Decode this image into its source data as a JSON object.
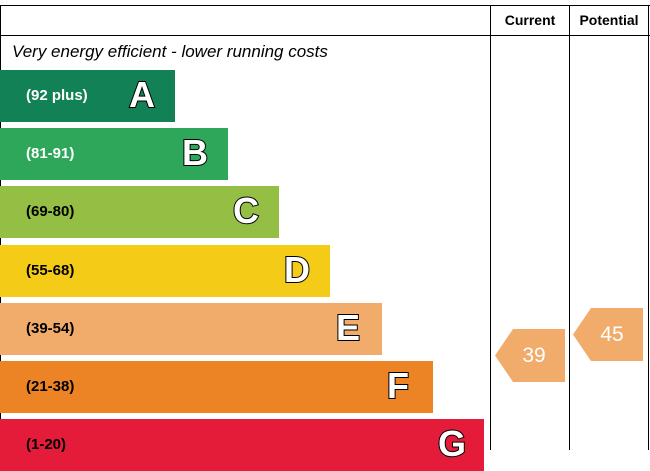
{
  "header": {
    "current_label": "Current",
    "potential_label": "Potential"
  },
  "top_description": "Very energy efficient - lower running costs",
  "chart_data": {
    "type": "bar",
    "categories": [
      "A",
      "B",
      "C",
      "D",
      "E",
      "F",
      "G"
    ],
    "bands": [
      {
        "letter": "A",
        "range": "(92 plus)",
        "color": "#138156",
        "text_color": "#ffffff"
      },
      {
        "letter": "B",
        "range": "(81-91)",
        "color": "#2ea75b",
        "text_color": "#ffffff"
      },
      {
        "letter": "C",
        "range": "(69-80)",
        "color": "#95be44",
        "text_color": "#000000"
      },
      {
        "letter": "D",
        "range": "(55-68)",
        "color": "#f4cc17",
        "text_color": "#000000"
      },
      {
        "letter": "E",
        "range": "(39-54)",
        "color": "#f1ab6b",
        "text_color": "#000000"
      },
      {
        "letter": "F",
        "range": "(21-38)",
        "color": "#ec8325",
        "text_color": "#000000"
      },
      {
        "letter": "G",
        "range": "(1-20)",
        "color": "#e41c3a",
        "text_color": "#000000"
      }
    ],
    "current": {
      "value": 39,
      "band": "E",
      "color": "#f1ab6b"
    },
    "potential": {
      "value": 45,
      "band": "E",
      "color": "#f1ab6b"
    }
  }
}
